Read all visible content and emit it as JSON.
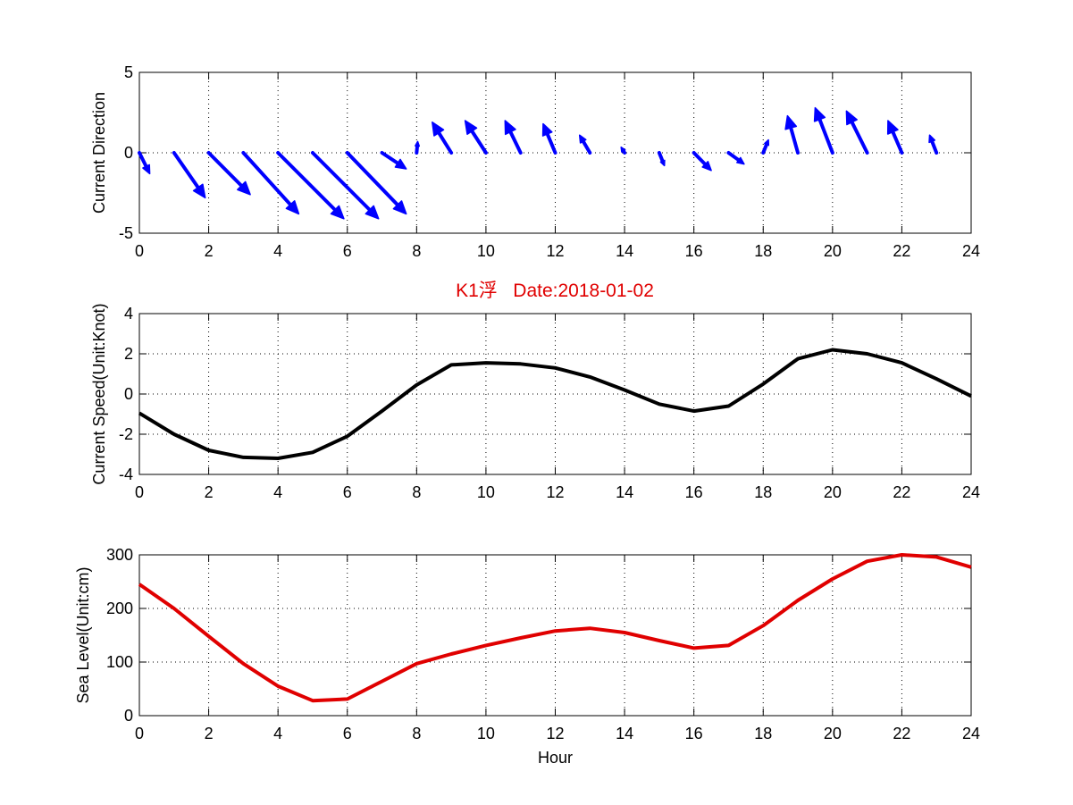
{
  "title": "K1浮   Date:2018-01-02",
  "colors": {
    "arrows": "#0000ff",
    "speed": "#000000",
    "sealevel": "#e00000",
    "title": "#e00000"
  },
  "chart_data": [
    {
      "id": "direction",
      "type": "quiver",
      "ylabel": "Current Direction",
      "xlim": [
        0,
        24
      ],
      "ylim": [
        -5,
        5
      ],
      "xticks": [
        0,
        2,
        4,
        6,
        8,
        10,
        12,
        14,
        16,
        18,
        20,
        22,
        24
      ],
      "yticks": [
        -5,
        0,
        5
      ],
      "grid": true,
      "x": [
        0,
        1,
        2,
        3,
        4,
        5,
        6,
        7,
        8,
        9,
        10,
        11,
        12,
        13,
        14,
        15,
        16,
        17,
        18,
        19,
        20,
        21,
        22,
        23
      ],
      "u": [
        0.3,
        0.9,
        1.2,
        1.6,
        1.9,
        1.9,
        1.7,
        0.7,
        0.03,
        -0.55,
        -0.6,
        -0.45,
        -0.35,
        -0.3,
        -0.1,
        0.15,
        0.5,
        0.45,
        0.15,
        -0.3,
        -0.5,
        -0.6,
        -0.4,
        -0.2
      ],
      "v": [
        -1.3,
        -2.8,
        -2.6,
        -3.8,
        -4.1,
        -4.1,
        -3.8,
        -1.0,
        0.7,
        1.9,
        2.0,
        2.0,
        1.8,
        1.1,
        0.35,
        -0.8,
        -1.1,
        -0.7,
        0.8,
        2.3,
        2.8,
        2.6,
        2.0,
        1.1
      ]
    },
    {
      "id": "speed",
      "type": "line",
      "ylabel": "Current Speed(Unit:Knot)",
      "xlim": [
        0,
        24
      ],
      "ylim": [
        -4,
        4
      ],
      "xticks": [
        0,
        2,
        4,
        6,
        8,
        10,
        12,
        14,
        16,
        18,
        20,
        22,
        24
      ],
      "yticks": [
        -4,
        -2,
        0,
        2,
        4
      ],
      "grid": true,
      "x": [
        0,
        1,
        2,
        3,
        4,
        5,
        6,
        7,
        8,
        9,
        10,
        11,
        12,
        13,
        14,
        15,
        16,
        17,
        18,
        19,
        20,
        21,
        22,
        23,
        24
      ],
      "y": [
        -0.95,
        -2.0,
        -2.8,
        -3.15,
        -3.2,
        -2.9,
        -2.1,
        -0.85,
        0.45,
        1.45,
        1.55,
        1.5,
        1.3,
        0.85,
        0.2,
        -0.5,
        -0.85,
        -0.6,
        0.5,
        1.75,
        2.2,
        2.0,
        1.55,
        0.75,
        -0.1
      ]
    },
    {
      "id": "sealevel",
      "type": "line",
      "ylabel": "Sea Level(Unit:cm)",
      "xlabel": "Hour",
      "xlim": [
        0,
        24
      ],
      "ylim": [
        0,
        300
      ],
      "xticks": [
        0,
        2,
        4,
        6,
        8,
        10,
        12,
        14,
        16,
        18,
        20,
        22,
        24
      ],
      "yticks": [
        0,
        100,
        200,
        300
      ],
      "grid": true,
      "x": [
        0,
        1,
        2,
        3,
        4,
        5,
        6,
        7,
        8,
        9,
        10,
        11,
        12,
        13,
        14,
        15,
        16,
        17,
        18,
        19,
        20,
        21,
        22,
        23,
        24
      ],
      "y": [
        245,
        200,
        148,
        97,
        55,
        28,
        31,
        64,
        97,
        115,
        131,
        145,
        158,
        163,
        155,
        140,
        126,
        131,
        168,
        215,
        255,
        288,
        300,
        296,
        277
      ]
    }
  ]
}
